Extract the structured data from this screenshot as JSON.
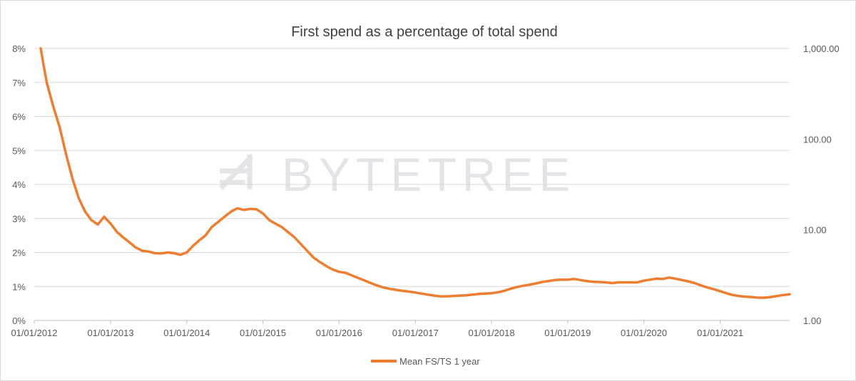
{
  "chart_data": {
    "type": "line",
    "title": "First spend as a percentage of total spend",
    "watermark": "BYTETREE",
    "x_range": [
      "2012-01-01",
      "2021-11-30"
    ],
    "x_ticks": [
      "01/01/2012",
      "01/01/2013",
      "01/01/2014",
      "01/01/2015",
      "01/01/2016",
      "01/01/2017",
      "01/01/2018",
      "01/01/2019",
      "01/01/2020",
      "01/01/2021"
    ],
    "y_left": {
      "min": 0,
      "max": 8,
      "ticks": [
        "0%",
        "1%",
        "2%",
        "3%",
        "4%",
        "5%",
        "6%",
        "7%",
        "8%"
      ]
    },
    "y_right": {
      "scale": "log",
      "min": 1,
      "max": 1000,
      "ticks": [
        "1.00",
        "10.00",
        "100.00",
        "1,000.00"
      ]
    },
    "grid": true,
    "legend_position": "bottom",
    "series": [
      {
        "name": "Mean FS/TS 1 year",
        "color": "#ed7d31",
        "points": [
          [
            "2012-02-01",
            8.0
          ],
          [
            "2012-02-15",
            7.5
          ],
          [
            "2012-03-01",
            7.0
          ],
          [
            "2012-04-01",
            6.3
          ],
          [
            "2012-05-01",
            5.7
          ],
          [
            "2012-06-01",
            4.9
          ],
          [
            "2012-07-01",
            4.2
          ],
          [
            "2012-08-01",
            3.6
          ],
          [
            "2012-09-01",
            3.2
          ],
          [
            "2012-10-01",
            2.95
          ],
          [
            "2012-11-01",
            2.82
          ],
          [
            "2012-12-01",
            3.05
          ],
          [
            "2013-01-01",
            2.85
          ],
          [
            "2013-02-01",
            2.6
          ],
          [
            "2013-03-01",
            2.45
          ],
          [
            "2013-04-01",
            2.3
          ],
          [
            "2013-05-01",
            2.15
          ],
          [
            "2013-06-01",
            2.05
          ],
          [
            "2013-07-01",
            2.03
          ],
          [
            "2013-08-01",
            1.98
          ],
          [
            "2013-09-01",
            1.97
          ],
          [
            "2013-10-01",
            2.0
          ],
          [
            "2013-11-01",
            1.98
          ],
          [
            "2013-12-01",
            1.93
          ],
          [
            "2014-01-01",
            2.0
          ],
          [
            "2014-02-01",
            2.2
          ],
          [
            "2014-03-01",
            2.35
          ],
          [
            "2014-04-01",
            2.5
          ],
          [
            "2014-05-01",
            2.75
          ],
          [
            "2014-06-01",
            2.9
          ],
          [
            "2014-07-01",
            3.05
          ],
          [
            "2014-08-01",
            3.2
          ],
          [
            "2014-09-01",
            3.3
          ],
          [
            "2014-10-01",
            3.25
          ],
          [
            "2014-11-01",
            3.28
          ],
          [
            "2014-12-01",
            3.27
          ],
          [
            "2015-01-01",
            3.15
          ],
          [
            "2015-02-01",
            2.95
          ],
          [
            "2015-03-01",
            2.85
          ],
          [
            "2015-04-01",
            2.75
          ],
          [
            "2015-05-01",
            2.6
          ],
          [
            "2015-06-01",
            2.45
          ],
          [
            "2015-07-01",
            2.25
          ],
          [
            "2015-08-01",
            2.05
          ],
          [
            "2015-09-01",
            1.85
          ],
          [
            "2015-10-01",
            1.72
          ],
          [
            "2015-11-01",
            1.6
          ],
          [
            "2015-12-01",
            1.5
          ],
          [
            "2016-01-01",
            1.43
          ],
          [
            "2016-02-01",
            1.4
          ],
          [
            "2016-03-01",
            1.33
          ],
          [
            "2016-04-01",
            1.25
          ],
          [
            "2016-05-01",
            1.18
          ],
          [
            "2016-06-01",
            1.1
          ],
          [
            "2016-07-01",
            1.03
          ],
          [
            "2016-08-01",
            0.97
          ],
          [
            "2016-09-01",
            0.93
          ],
          [
            "2016-10-01",
            0.9
          ],
          [
            "2016-11-01",
            0.87
          ],
          [
            "2016-12-01",
            0.85
          ],
          [
            "2017-01-01",
            0.82
          ],
          [
            "2017-02-01",
            0.79
          ],
          [
            "2017-03-01",
            0.76
          ],
          [
            "2017-04-01",
            0.73
          ],
          [
            "2017-05-01",
            0.71
          ],
          [
            "2017-06-01",
            0.71
          ],
          [
            "2017-07-01",
            0.72
          ],
          [
            "2017-08-01",
            0.73
          ],
          [
            "2017-09-01",
            0.74
          ],
          [
            "2017-10-01",
            0.76
          ],
          [
            "2017-11-01",
            0.78
          ],
          [
            "2017-12-01",
            0.79
          ],
          [
            "2018-01-01",
            0.8
          ],
          [
            "2018-02-01",
            0.83
          ],
          [
            "2018-03-01",
            0.87
          ],
          [
            "2018-04-01",
            0.93
          ],
          [
            "2018-05-01",
            0.98
          ],
          [
            "2018-06-01",
            1.02
          ],
          [
            "2018-07-01",
            1.05
          ],
          [
            "2018-08-01",
            1.09
          ],
          [
            "2018-09-01",
            1.13
          ],
          [
            "2018-10-01",
            1.16
          ],
          [
            "2018-11-01",
            1.19
          ],
          [
            "2018-12-01",
            1.2
          ],
          [
            "2019-01-01",
            1.2
          ],
          [
            "2019-02-01",
            1.22
          ],
          [
            "2019-03-01",
            1.19
          ],
          [
            "2019-04-01",
            1.16
          ],
          [
            "2019-05-01",
            1.14
          ],
          [
            "2019-06-01",
            1.13
          ],
          [
            "2019-07-01",
            1.12
          ],
          [
            "2019-08-01",
            1.1
          ],
          [
            "2019-09-01",
            1.12
          ],
          [
            "2019-10-01",
            1.12
          ],
          [
            "2019-11-01",
            1.12
          ],
          [
            "2019-12-01",
            1.12
          ],
          [
            "2020-01-01",
            1.17
          ],
          [
            "2020-02-01",
            1.2
          ],
          [
            "2020-03-01",
            1.23
          ],
          [
            "2020-04-01",
            1.22
          ],
          [
            "2020-05-01",
            1.26
          ],
          [
            "2020-06-01",
            1.23
          ],
          [
            "2020-07-01",
            1.19
          ],
          [
            "2020-08-01",
            1.15
          ],
          [
            "2020-09-01",
            1.1
          ],
          [
            "2020-10-01",
            1.03
          ],
          [
            "2020-11-01",
            0.97
          ],
          [
            "2020-12-01",
            0.92
          ],
          [
            "2021-01-01",
            0.86
          ],
          [
            "2021-02-01",
            0.8
          ],
          [
            "2021-03-01",
            0.75
          ],
          [
            "2021-04-01",
            0.72
          ],
          [
            "2021-05-01",
            0.7
          ],
          [
            "2021-06-01",
            0.69
          ],
          [
            "2021-07-01",
            0.67
          ],
          [
            "2021-08-01",
            0.67
          ],
          [
            "2021-09-01",
            0.69
          ],
          [
            "2021-10-01",
            0.72
          ],
          [
            "2021-11-01",
            0.75
          ],
          [
            "2021-11-30",
            0.77
          ]
        ]
      }
    ]
  }
}
